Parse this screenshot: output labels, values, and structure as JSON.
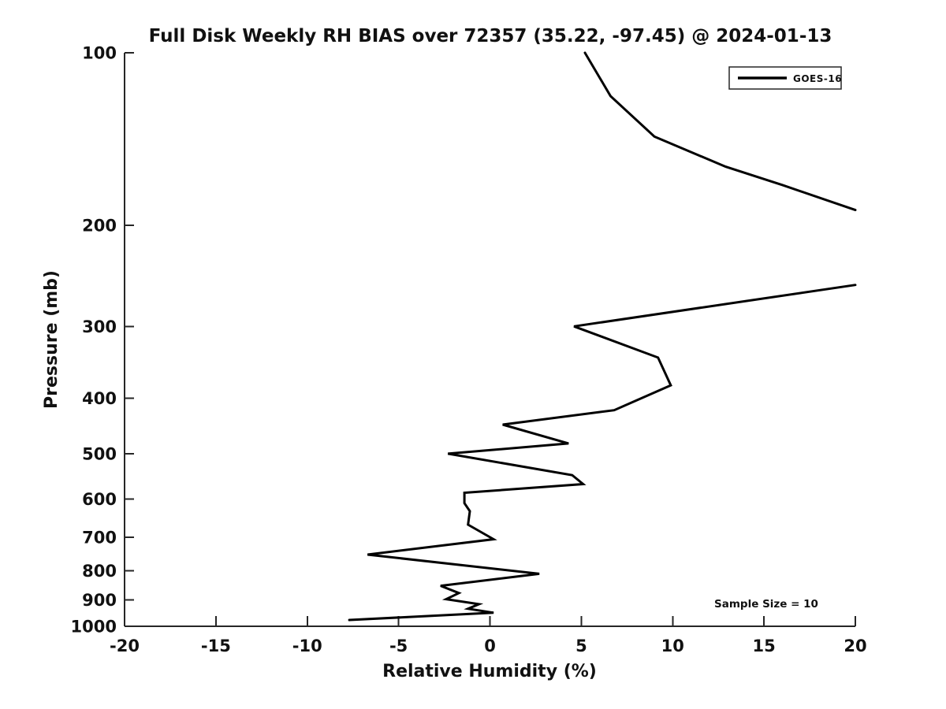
{
  "title": "Full Disk Weekly RH BIAS over 72357 (35.22, -97.45) @ 2024-01-13",
  "annotations": {
    "sample_size": "Sample Size = 10"
  },
  "legend": {
    "position": "upper right",
    "entries": [
      {
        "label": "GOES-16",
        "color": "#000000",
        "style": "solid-line"
      }
    ]
  },
  "colors": {
    "background": "#ffffff",
    "data_line": "#000000",
    "axis": "#262626",
    "text": "#111111"
  },
  "chart_data": {
    "type": "line",
    "title": "Full Disk Weekly RH BIAS over 72357 (35.22, -97.45) @ 2024-01-13",
    "xlabel": "Relative Humidity (%)",
    "ylabel": "Pressure (mb)",
    "xlim": [
      -20,
      20
    ],
    "ylim": [
      100,
      1000
    ],
    "yscale": "log",
    "y_axis_inverted_downward": true,
    "grid": false,
    "legend_position": "upper right",
    "xticks": [
      -20,
      -15,
      -10,
      -5,
      0,
      5,
      10,
      15,
      20
    ],
    "yticks": [
      100,
      200,
      300,
      400,
      500,
      600,
      700,
      800,
      900,
      1000
    ],
    "series": [
      {
        "name": "GOES-16",
        "color": "#000000",
        "note": "curve exceeds x-axis max (20%) between ~188 mb and ~254 mb, so it is clipped at the right edge into two drawn segments",
        "segments": [
          {
            "pressure_mb": [
              100,
              119,
              140,
              158,
              170,
              188
            ],
            "rh_bias_pct": [
              5.2,
              6.6,
              9.0,
              12.9,
              16.0,
              20.0
            ]
          },
          {
            "pressure_mb": [
              254,
              300,
              340,
              380,
              420,
              445,
              480,
              500,
              545,
              565,
              585,
              610,
              630,
              665,
              705,
              750,
              810,
              850,
              875,
              897,
              915,
              932,
              947,
              975
            ],
            "rh_bias_pct": [
              20.0,
              4.6,
              9.2,
              9.9,
              6.8,
              0.7,
              4.3,
              -2.3,
              4.5,
              5.1,
              -1.4,
              -1.4,
              -1.1,
              -1.2,
              0.2,
              -6.7,
              2.7,
              -2.7,
              -1.7,
              -2.4,
              -0.6,
              -1.2,
              0.2,
              -7.7
            ]
          }
        ]
      }
    ]
  }
}
